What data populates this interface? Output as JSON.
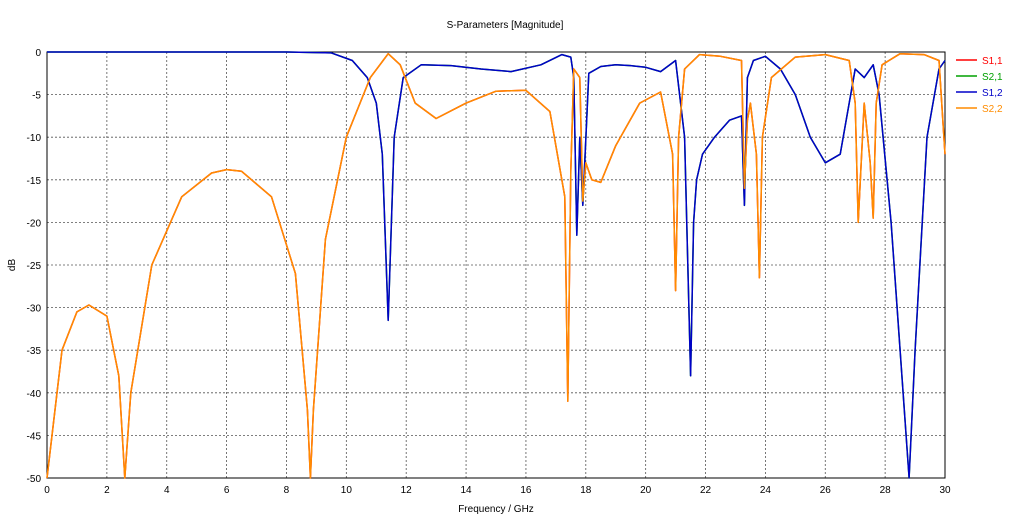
{
  "chart_data": {
    "type": "line",
    "title": "S-Parameters [Magnitude]",
    "xlabel": "Frequency / GHz",
    "ylabel": "dB",
    "xlim": [
      0,
      30
    ],
    "ylim": [
      -50,
      0
    ],
    "xticks": [
      0,
      2,
      4,
      6,
      8,
      10,
      12,
      14,
      16,
      18,
      20,
      22,
      24,
      26,
      28,
      30
    ],
    "yticks": [
      0,
      -5,
      -10,
      -15,
      -20,
      -25,
      -30,
      -35,
      -40,
      -45,
      -50
    ],
    "grid": true,
    "legend_position": "right",
    "series": [
      {
        "name": "S1,1",
        "color": "#ff0000",
        "x": [
          0,
          0.5,
          1.0,
          1.4,
          2.0,
          2.4,
          2.6,
          2.8,
          3.5,
          4.5,
          5.5,
          6.0,
          6.5,
          7.5,
          8.3,
          8.7,
          8.8,
          8.9,
          9.3,
          10.0,
          10.8,
          11.4,
          11.8,
          12.3,
          13.0,
          14.0,
          15.0,
          16.0,
          16.8,
          17.3,
          17.4,
          17.5,
          17.6,
          17.8,
          17.9,
          18.0,
          18.2,
          18.5,
          19.0,
          19.8,
          20.5,
          20.9,
          21.0,
          21.1,
          21.3,
          21.8,
          22.5,
          23.2,
          23.3,
          23.4,
          23.5,
          23.7,
          23.8,
          23.9,
          24.2,
          25.0,
          26.0,
          26.8,
          27.0,
          27.1,
          27.3,
          27.5,
          27.6,
          27.7,
          27.9,
          28.5,
          29.3,
          29.8,
          30.0
        ],
        "values": [
          -50,
          -35,
          -30.5,
          -29.7,
          -31,
          -38,
          -50,
          -40,
          -25,
          -17,
          -14.2,
          -13.8,
          -14,
          -17,
          -26,
          -42,
          -50,
          -42,
          -22,
          -10,
          -3,
          -0.2,
          -1.5,
          -6,
          -7.8,
          -6,
          -4.6,
          -4.5,
          -7,
          -17,
          -41,
          -14,
          -2,
          -3,
          -17.5,
          -13,
          -15,
          -15.3,
          -11,
          -6,
          -4.7,
          -12,
          -28,
          -10,
          -2,
          -0.3,
          -0.5,
          -1,
          -16,
          -8,
          -6,
          -12,
          -26.5,
          -10,
          -3,
          -0.6,
          -0.3,
          -1,
          -6,
          -20,
          -6,
          -13,
          -19.5,
          -6,
          -1.5,
          -0.2,
          -0.3,
          -1,
          -12
        ]
      },
      {
        "name": "S2,1",
        "color": "#00a000",
        "x": [
          0,
          2,
          4,
          6,
          8,
          9.5,
          10.2,
          10.7,
          11.0,
          11.2,
          11.4,
          11.6,
          11.9,
          12.5,
          13.5,
          14.5,
          15.5,
          16.5,
          17.2,
          17.5,
          17.6,
          17.7,
          17.8,
          17.9,
          18.1,
          18.5,
          19.0,
          19.5,
          20.0,
          20.5,
          21.0,
          21.3,
          21.5,
          21.6,
          21.7,
          21.9,
          22.3,
          22.8,
          23.2,
          23.3,
          23.4,
          23.6,
          24.0,
          24.5,
          25.0,
          25.5,
          26.0,
          26.5,
          27.0,
          27.3,
          27.6,
          27.8,
          28.2,
          28.6,
          28.8,
          29.0,
          29.4,
          29.8,
          30.0
        ],
        "values": [
          0,
          0,
          0,
          0,
          0,
          -0.1,
          -1,
          -3,
          -6,
          -12,
          -31.5,
          -10,
          -3,
          -1.5,
          -1.6,
          -2,
          -2.3,
          -1.5,
          -0.3,
          -0.6,
          -3,
          -21.5,
          -10,
          -18,
          -2.5,
          -1.7,
          -1.5,
          -1.6,
          -1.8,
          -2.3,
          -1,
          -10,
          -38,
          -20,
          -15,
          -12,
          -10,
          -8,
          -7.5,
          -18,
          -3,
          -1,
          -0.5,
          -2,
          -5,
          -10,
          -13,
          -12,
          -2,
          -3,
          -1.5,
          -5,
          -20,
          -40,
          -50,
          -35,
          -10,
          -2,
          -1
        ]
      },
      {
        "name": "S1,2",
        "color": "#0000c8",
        "x": [
          0,
          2,
          4,
          6,
          8,
          9.5,
          10.2,
          10.7,
          11.0,
          11.2,
          11.4,
          11.6,
          11.9,
          12.5,
          13.5,
          14.5,
          15.5,
          16.5,
          17.2,
          17.5,
          17.6,
          17.7,
          17.8,
          17.9,
          18.1,
          18.5,
          19.0,
          19.5,
          20.0,
          20.5,
          21.0,
          21.3,
          21.5,
          21.6,
          21.7,
          21.9,
          22.3,
          22.8,
          23.2,
          23.3,
          23.4,
          23.6,
          24.0,
          24.5,
          25.0,
          25.5,
          26.0,
          26.5,
          27.0,
          27.3,
          27.6,
          27.8,
          28.2,
          28.6,
          28.8,
          29.0,
          29.4,
          29.8,
          30.0
        ],
        "values": [
          0,
          0,
          0,
          0,
          0,
          -0.1,
          -1,
          -3,
          -6,
          -12,
          -31.5,
          -10,
          -3,
          -1.5,
          -1.6,
          -2,
          -2.3,
          -1.5,
          -0.3,
          -0.6,
          -3,
          -21.5,
          -10,
          -18,
          -2.5,
          -1.7,
          -1.5,
          -1.6,
          -1.8,
          -2.3,
          -1,
          -10,
          -38,
          -20,
          -15,
          -12,
          -10,
          -8,
          -7.5,
          -18,
          -3,
          -1,
          -0.5,
          -2,
          -5,
          -10,
          -13,
          -12,
          -2,
          -3,
          -1.5,
          -5,
          -20,
          -40,
          -50,
          -35,
          -10,
          -2,
          -1
        ]
      },
      {
        "name": "S2,2",
        "color": "#ff8c00",
        "x": [
          0,
          0.5,
          1.0,
          1.4,
          2.0,
          2.4,
          2.6,
          2.8,
          3.5,
          4.5,
          5.5,
          6.0,
          6.5,
          7.5,
          8.3,
          8.7,
          8.8,
          8.9,
          9.3,
          10.0,
          10.8,
          11.4,
          11.8,
          12.3,
          13.0,
          14.0,
          15.0,
          16.0,
          16.8,
          17.3,
          17.4,
          17.5,
          17.6,
          17.8,
          17.9,
          18.0,
          18.2,
          18.5,
          19.0,
          19.8,
          20.5,
          20.9,
          21.0,
          21.1,
          21.3,
          21.8,
          22.5,
          23.2,
          23.3,
          23.4,
          23.5,
          23.7,
          23.8,
          23.9,
          24.2,
          25.0,
          26.0,
          26.8,
          27.0,
          27.1,
          27.3,
          27.5,
          27.6,
          27.7,
          27.9,
          28.5,
          29.3,
          29.8,
          30.0
        ],
        "values": [
          -50,
          -35,
          -30.5,
          -29.7,
          -31,
          -38,
          -50,
          -40,
          -25,
          -17,
          -14.2,
          -13.8,
          -14,
          -17,
          -26,
          -42,
          -50,
          -42,
          -22,
          -10,
          -3,
          -0.2,
          -1.5,
          -6,
          -7.8,
          -6,
          -4.6,
          -4.5,
          -7,
          -17,
          -41,
          -14,
          -2,
          -3,
          -17.5,
          -13,
          -15,
          -15.3,
          -11,
          -6,
          -4.7,
          -12,
          -28,
          -10,
          -2,
          -0.3,
          -0.5,
          -1,
          -16,
          -8,
          -6,
          -12,
          -26.5,
          -10,
          -3,
          -0.6,
          -0.3,
          -1,
          -6,
          -20,
          -6,
          -13,
          -19.5,
          -6,
          -1.5,
          -0.2,
          -0.3,
          -1,
          -12
        ]
      }
    ]
  }
}
